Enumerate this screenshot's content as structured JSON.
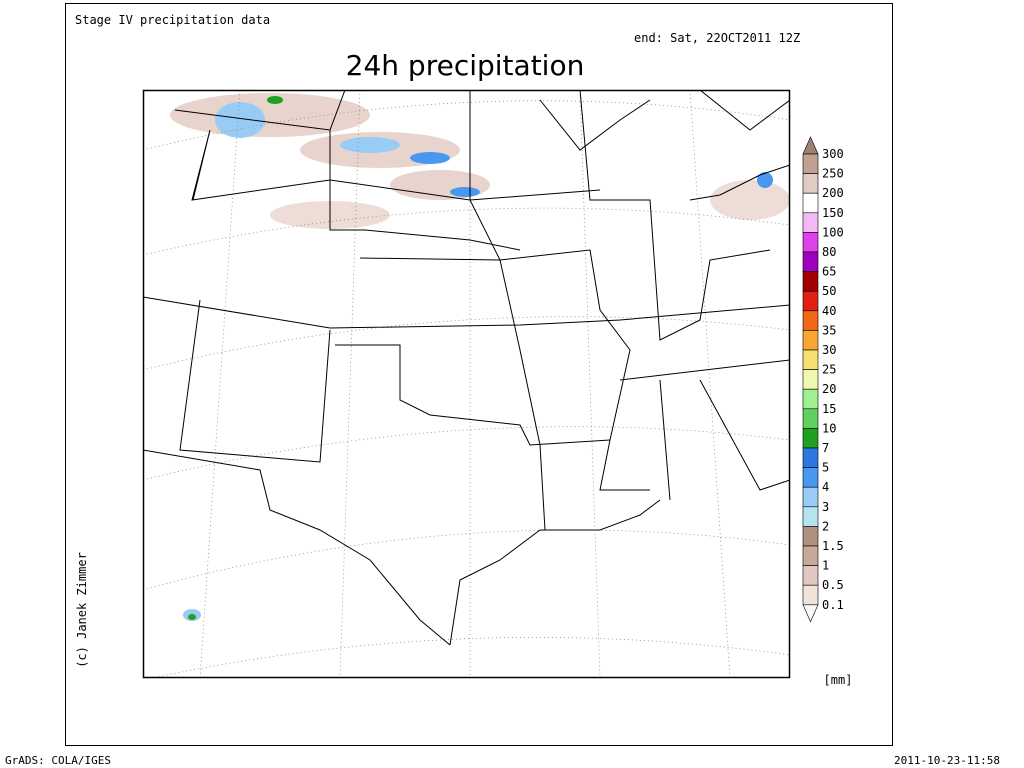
{
  "header": {
    "source": "Stage IV precipitation data",
    "end_time": "end: Sat, 22OCT2011 12Z",
    "title": "24h precipitation"
  },
  "credit": "(c) Janek Zimmer",
  "footer": {
    "left": "GrADS: COLA/IGES",
    "right": "2011-10-23-11:58"
  },
  "colorbar": {
    "unit": "[mm]",
    "levels": [
      300,
      250,
      200,
      150,
      100,
      80,
      65,
      50,
      40,
      35,
      30,
      25,
      20,
      15,
      10,
      7,
      5,
      4,
      3,
      2,
      1.5,
      1,
      0.5,
      0.1
    ],
    "colors": [
      "#a08070",
      "#c0a090",
      "#e0ccc4",
      "#ffffff",
      "#f4b8f4",
      "#e040e8",
      "#a000c0",
      "#a00000",
      "#e02010",
      "#f06818",
      "#f8a830",
      "#f8e070",
      "#f0f8b0",
      "#a0f090",
      "#60d060",
      "#20a020",
      "#2c78e0",
      "#4898f0",
      "#98ccf4",
      "#b4e4f0",
      "#b09080",
      "#c8a898",
      "#e0c8c0",
      "#f2e2dc",
      "#fcf8f8"
    ]
  }
}
